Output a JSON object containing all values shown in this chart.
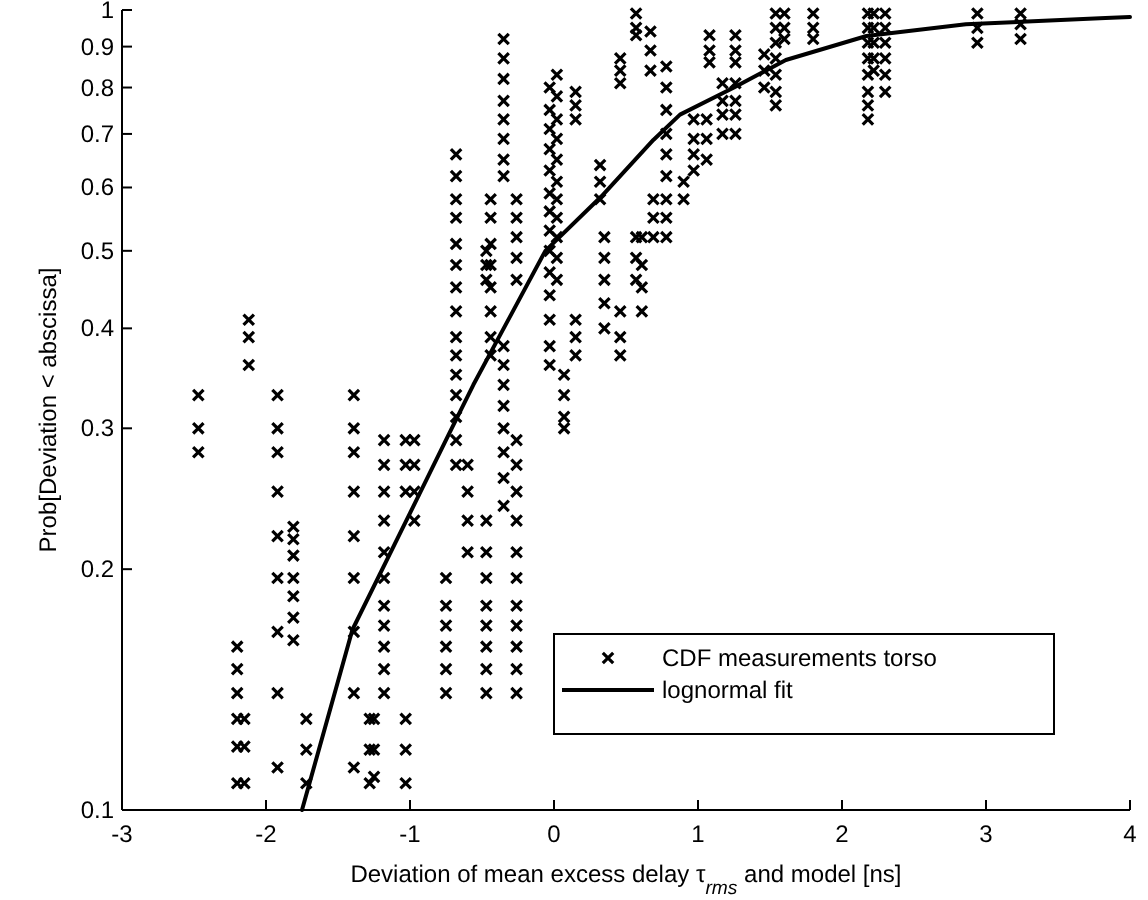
{
  "chart_data": {
    "type": "scatter",
    "xlabel": "Deviation of mean excess delay τ$_{rms}$ and model [ns]",
    "ylabel": "Prob[Deviation < abscissa]",
    "xlim": [
      -3,
      4
    ],
    "xticks": [
      -3,
      -2,
      -1,
      0,
      1,
      2,
      3,
      4
    ],
    "ylim": [
      0.1,
      1
    ],
    "yticks": [
      0.1,
      0.2,
      0.3,
      0.4,
      0.5,
      0.6,
      0.7,
      0.8,
      0.9,
      1
    ],
    "log": "y",
    "grid": false,
    "legend": "bottom right",
    "series": [
      {
        "name": "CDF measurements torso",
        "marker": "cross",
        "color": "#000000",
        "x": [
          -2.47,
          -2.47,
          -2.47,
          -2.12,
          -2.12,
          -2.12,
          -2.2,
          -2.2,
          -2.2,
          -2.2,
          -2.2,
          -2.2,
          -2.15,
          -2.15,
          -2.15,
          -1.92,
          -1.92,
          -1.92,
          -1.92,
          -1.92,
          -1.92,
          -1.92,
          -1.92,
          -1.92,
          -1.81,
          -1.81,
          -1.81,
          -1.81,
          -1.81,
          -1.81,
          -1.81,
          -1.72,
          -1.72,
          -1.72,
          -1.39,
          -1.39,
          -1.39,
          -1.39,
          -1.39,
          -1.39,
          -1.39,
          -1.39,
          -1.39,
          -1.28,
          -1.28,
          -1.28,
          -1.25,
          -1.25,
          -1.25,
          -1.18,
          -1.18,
          -1.18,
          -1.18,
          -1.18,
          -1.18,
          -1.18,
          -1.18,
          -1.18,
          -1.18,
          -1.18,
          -1.03,
          -1.03,
          -1.03,
          -1.03,
          -1.03,
          -1.03,
          -0.97,
          -0.97,
          -0.97,
          -0.97,
          -0.75,
          -0.75,
          -0.75,
          -0.75,
          -0.75,
          -0.75,
          -0.68,
          -0.68,
          -0.68,
          -0.68,
          -0.68,
          -0.68,
          -0.68,
          -0.68,
          -0.68,
          -0.68,
          -0.68,
          -0.68,
          -0.68,
          -0.68,
          -0.68,
          -0.6,
          -0.6,
          -0.6,
          -0.6,
          -0.47,
          -0.47,
          -0.47,
          -0.47,
          -0.47,
          -0.47,
          -0.47,
          -0.47,
          -0.47,
          -0.47,
          -0.47,
          -0.44,
          -0.44,
          -0.44,
          -0.44,
          -0.44,
          -0.44,
          -0.44,
          -0.44,
          -0.35,
          -0.35,
          -0.35,
          -0.35,
          -0.35,
          -0.35,
          -0.35,
          -0.35,
          -0.35,
          -0.35,
          -0.35,
          -0.35,
          -0.35,
          -0.35,
          -0.35,
          -0.35,
          -0.26,
          -0.26,
          -0.26,
          -0.26,
          -0.26,
          -0.26,
          -0.26,
          -0.26,
          -0.26,
          -0.26,
          -0.26,
          -0.26,
          -0.26,
          -0.26,
          -0.26,
          -0.26,
          -0.03,
          -0.03,
          -0.03,
          -0.03,
          -0.03,
          -0.03,
          -0.03,
          -0.03,
          -0.03,
          -0.03,
          -0.03,
          -0.03,
          -0.03,
          -0.03,
          0.02,
          0.02,
          0.02,
          0.02,
          0.02,
          0.02,
          0.02,
          0.02,
          0.02,
          0.02,
          0.02,
          0.07,
          0.07,
          0.07,
          0.07,
          0.15,
          0.15,
          0.15,
          0.15,
          0.15,
          0.15,
          0.32,
          0.32,
          0.32,
          0.35,
          0.35,
          0.35,
          0.35,
          0.35,
          0.46,
          0.46,
          0.46,
          0.46,
          0.46,
          0.46,
          0.57,
          0.57,
          0.57,
          0.57,
          0.57,
          0.57,
          0.61,
          0.61,
          0.61,
          0.61,
          0.67,
          0.67,
          0.67,
          0.69,
          0.69,
          0.69,
          0.78,
          0.78,
          0.78,
          0.78,
          0.78,
          0.78,
          0.78,
          0.78,
          0.78,
          0.9,
          0.9,
          0.97,
          0.97,
          0.97,
          0.97,
          1.06,
          1.06,
          1.06,
          1.08,
          1.08,
          1.08,
          1.17,
          1.17,
          1.17,
          1.17,
          1.26,
          1.26,
          1.26,
          1.26,
          1.26,
          1.26,
          1.26,
          1.46,
          1.46,
          1.46,
          1.54,
          1.54,
          1.54,
          1.54,
          1.54,
          1.54,
          1.54,
          1.6,
          1.6,
          1.6,
          1.8,
          1.8,
          1.8,
          2.18,
          2.18,
          2.18,
          2.18,
          2.18,
          2.18,
          2.18,
          2.18,
          2.22,
          2.22,
          2.22,
          2.22,
          2.22,
          2.3,
          2.3,
          2.3,
          2.3,
          2.3,
          2.3,
          2.94,
          2.94,
          2.94,
          3.24,
          3.24,
          3.24
        ],
        "values": [
          0.33,
          0.3,
          0.28,
          0.41,
          0.39,
          0.36,
          0.16,
          0.15,
          0.14,
          0.13,
          0.12,
          0.108,
          0.13,
          0.12,
          0.108,
          0.33,
          0.3,
          0.28,
          0.25,
          0.22,
          0.195,
          0.167,
          0.14,
          0.113,
          0.226,
          0.218,
          0.208,
          0.195,
          0.185,
          0.174,
          0.163,
          0.13,
          0.119,
          0.108,
          0.33,
          0.3,
          0.28,
          0.25,
          0.22,
          0.195,
          0.167,
          0.14,
          0.113,
          0.13,
          0.119,
          0.108,
          0.13,
          0.119,
          0.11,
          0.29,
          0.27,
          0.25,
          0.23,
          0.21,
          0.195,
          0.18,
          0.17,
          0.16,
          0.15,
          0.14,
          0.29,
          0.27,
          0.25,
          0.13,
          0.119,
          0.108,
          0.29,
          0.27,
          0.25,
          0.23,
          0.195,
          0.18,
          0.17,
          0.16,
          0.15,
          0.14,
          0.66,
          0.62,
          0.58,
          0.55,
          0.51,
          0.48,
          0.45,
          0.42,
          0.39,
          0.37,
          0.35,
          0.33,
          0.31,
          0.29,
          0.27,
          0.27,
          0.25,
          0.23,
          0.21,
          0.5,
          0.48,
          0.46,
          0.23,
          0.21,
          0.195,
          0.18,
          0.17,
          0.16,
          0.15,
          0.14,
          0.58,
          0.55,
          0.51,
          0.48,
          0.45,
          0.42,
          0.39,
          0.37,
          0.92,
          0.87,
          0.82,
          0.77,
          0.73,
          0.69,
          0.65,
          0.62,
          0.38,
          0.36,
          0.34,
          0.32,
          0.3,
          0.28,
          0.26,
          0.24,
          0.58,
          0.55,
          0.52,
          0.49,
          0.46,
          0.29,
          0.27,
          0.25,
          0.23,
          0.21,
          0.195,
          0.18,
          0.17,
          0.16,
          0.15,
          0.14,
          0.8,
          0.75,
          0.71,
          0.67,
          0.63,
          0.59,
          0.56,
          0.53,
          0.5,
          0.47,
          0.44,
          0.41,
          0.38,
          0.36,
          0.83,
          0.78,
          0.73,
          0.69,
          0.65,
          0.61,
          0.58,
          0.55,
          0.52,
          0.49,
          0.46,
          0.35,
          0.33,
          0.31,
          0.3,
          0.79,
          0.76,
          0.73,
          0.41,
          0.39,
          0.37,
          0.64,
          0.61,
          0.58,
          0.52,
          0.49,
          0.46,
          0.43,
          0.4,
          0.87,
          0.84,
          0.81,
          0.42,
          0.39,
          0.37,
          0.99,
          0.95,
          0.93,
          0.52,
          0.49,
          0.46,
          0.52,
          0.48,
          0.45,
          0.42,
          0.94,
          0.89,
          0.84,
          0.58,
          0.55,
          0.52,
          0.85,
          0.8,
          0.75,
          0.7,
          0.66,
          0.62,
          0.58,
          0.55,
          0.52,
          0.61,
          0.58,
          0.73,
          0.69,
          0.66,
          0.63,
          0.73,
          0.69,
          0.65,
          0.93,
          0.89,
          0.86,
          0.81,
          0.77,
          0.74,
          0.7,
          0.93,
          0.89,
          0.86,
          0.81,
          0.77,
          0.74,
          0.7,
          0.88,
          0.84,
          0.8,
          0.99,
          0.95,
          0.91,
          0.87,
          0.83,
          0.79,
          0.76,
          0.99,
          0.95,
          0.92,
          0.99,
          0.95,
          0.92,
          0.99,
          0.95,
          0.91,
          0.87,
          0.83,
          0.79,
          0.76,
          0.73,
          0.99,
          0.95,
          0.91,
          0.87,
          0.84,
          0.99,
          0.95,
          0.91,
          0.87,
          0.83,
          0.79,
          0.99,
          0.95,
          0.91,
          0.99,
          0.96,
          0.92
        ]
      },
      {
        "name": "lognormal fit",
        "type": "line",
        "marker": "none",
        "line_style": "solid",
        "color": "#000000",
        "x": [
          -1.75,
          -1.4,
          -1.0,
          -0.73,
          -0.56,
          -0.06,
          0.33,
          0.69,
          0.875,
          1.25,
          1.61,
          2.17,
          2.86,
          3.83,
          4
        ],
        "values": [
          0.1,
          0.168,
          0.235,
          0.295,
          0.34,
          0.5,
          0.585,
          0.688,
          0.74,
          0.8,
          0.866,
          0.928,
          0.96,
          0.977,
          0.98
        ]
      }
    ]
  }
}
